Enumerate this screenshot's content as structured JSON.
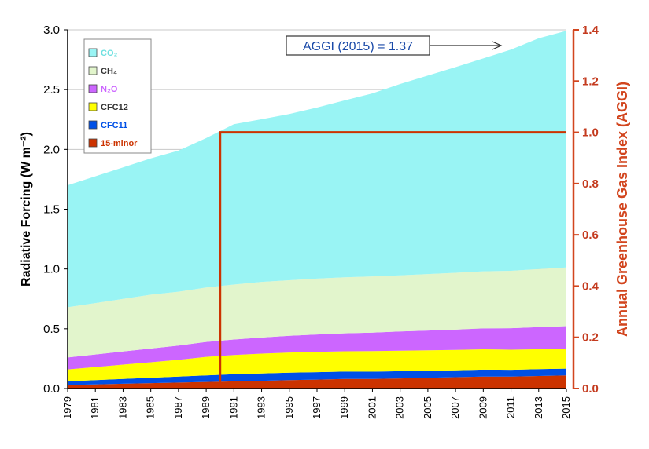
{
  "chart_data": {
    "type": "area",
    "stacked": true,
    "title": "",
    "xlabel": "",
    "ylabel": "Radiative Forcing (W m⁻²)",
    "y2label": "Annual Greenhouse Gas Index (AGGI)",
    "xlim": [
      1979,
      2015
    ],
    "ylim": [
      0,
      3.0
    ],
    "y2lim": [
      0,
      1.4
    ],
    "x_tick_labels": [
      "1979",
      "1981",
      "1983",
      "1985",
      "1987",
      "1989",
      "1991",
      "1993",
      "1995",
      "1997",
      "1999",
      "2001",
      "2003",
      "2005",
      "2007",
      "2009",
      "2011",
      "2013",
      "2015"
    ],
    "y_tick_labels": [
      "0.0",
      "0.5",
      "1.0",
      "1.5",
      "2.0",
      "2.5",
      "3.0"
    ],
    "y2_tick_labels": [
      "0.0",
      "0.2",
      "0.4",
      "0.6",
      "0.8",
      "1.0",
      "1.2",
      "1.4"
    ],
    "grid": true,
    "legend_position": "top-left",
    "x": [
      1979,
      1981,
      1983,
      1985,
      1987,
      1989,
      1991,
      1993,
      1995,
      1997,
      1999,
      2001,
      2003,
      2005,
      2007,
      2009,
      2011,
      2013,
      2015
    ],
    "series": [
      {
        "name": "15-minor",
        "color": "#cc3300",
        "values": [
          0.03,
          0.035,
          0.04,
          0.045,
          0.05,
          0.055,
          0.06,
          0.065,
          0.07,
          0.075,
          0.08,
          0.08,
          0.085,
          0.09,
          0.095,
          0.1,
          0.1,
          0.105,
          0.11
        ]
      },
      {
        "name": "CFC11",
        "color": "#0050e6",
        "values": [
          0.03,
          0.035,
          0.04,
          0.045,
          0.05,
          0.055,
          0.06,
          0.062,
          0.063,
          0.062,
          0.062,
          0.061,
          0.06,
          0.059,
          0.058,
          0.058,
          0.057,
          0.057,
          0.057
        ]
      },
      {
        "name": "CFC12",
        "color": "#ffff00",
        "values": [
          0.1,
          0.11,
          0.12,
          0.13,
          0.14,
          0.155,
          0.16,
          0.165,
          0.168,
          0.17,
          0.17,
          0.172,
          0.172,
          0.171,
          0.17,
          0.17,
          0.168,
          0.167,
          0.165
        ]
      },
      {
        "name": "N₂O",
        "color": "#cc66ff",
        "values": [
          0.1,
          0.105,
          0.11,
          0.115,
          0.12,
          0.125,
          0.13,
          0.135,
          0.14,
          0.145,
          0.15,
          0.155,
          0.16,
          0.165,
          0.17,
          0.175,
          0.18,
          0.185,
          0.19
        ]
      },
      {
        "name": "CH₄",
        "color": "#e2f5cc",
        "values": [
          0.42,
          0.43,
          0.44,
          0.45,
          0.45,
          0.455,
          0.46,
          0.465,
          0.465,
          0.468,
          0.468,
          0.47,
          0.47,
          0.473,
          0.475,
          0.478,
          0.48,
          0.485,
          0.49
        ]
      },
      {
        "name": "CO₂",
        "color": "#99f4f4",
        "values": [
          1.02,
          1.06,
          1.1,
          1.14,
          1.18,
          1.25,
          1.34,
          1.36,
          1.39,
          1.43,
          1.48,
          1.53,
          1.6,
          1.66,
          1.72,
          1.78,
          1.85,
          1.93,
          1.98
        ]
      }
    ],
    "legend_order": [
      "CO₂",
      "CH₄",
      "N₂O",
      "CFC12",
      "CFC11",
      "15-minor"
    ],
    "aggi_step": {
      "x_start": 1990,
      "aggi_level": 1.0,
      "color": "#cc3300"
    },
    "annotation": {
      "text": "AGGI (2015) = 1.37",
      "arrow_to_year": 2015
    }
  }
}
